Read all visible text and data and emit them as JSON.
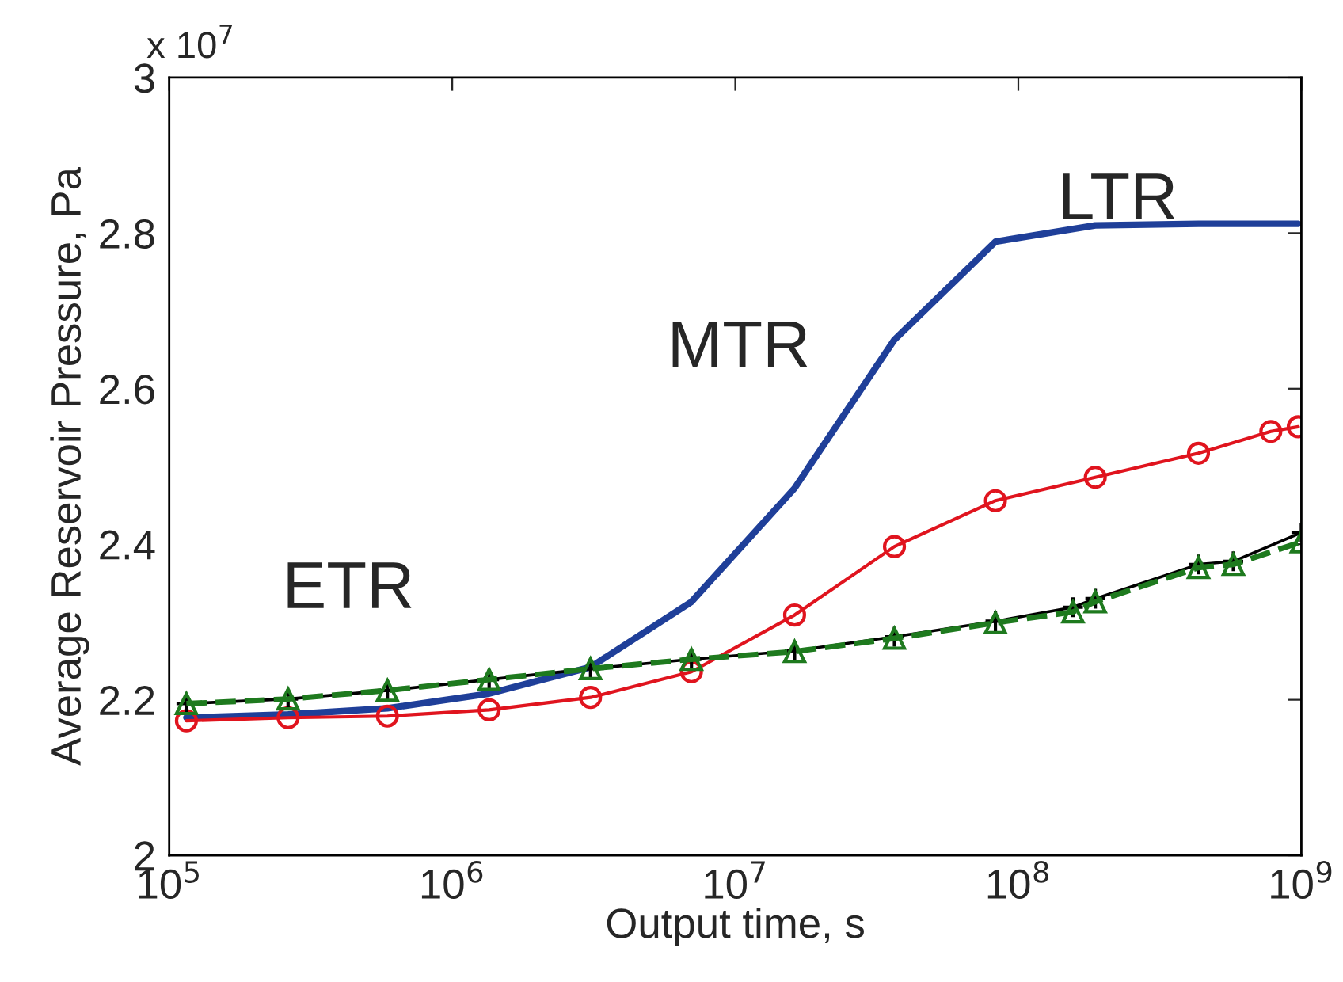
{
  "chart_data": {
    "type": "line",
    "xlabel": "Output time, s",
    "ylabel": "Average Reservoir Pressure, Pa",
    "annotations": [
      "x 10$^{7}$",
      "ETR",
      "MTR",
      "LTR"
    ],
    "log": "x",
    "xlim": [
      100000,
      1000000000
    ],
    "xticks": [
      {
        "value": 100000,
        "label": "10$^{5}$"
      },
      {
        "value": 1000000,
        "label": "10$^{6}$"
      },
      {
        "value": 10000000,
        "label": "10$^{7}$"
      },
      {
        "value": 100000000,
        "label": "10$^{8}$"
      },
      {
        "value": 1000000000,
        "label": "10$^{9}$"
      }
    ],
    "ylim": [
      2,
      3
    ],
    "yticks": [
      2,
      2.2,
      2.4,
      2.6,
      2.8,
      3
    ],
    "grid": false,
    "series": [
      {
        "color": "#1f3f99",
        "marker": "none",
        "line_style": "solid",
        "x": [
          115000,
          263000,
          590000,
          1350000,
          3080000,
          7000000,
          16200000,
          36500000,
          83000000,
          187000000,
          433000000,
          975000000
        ],
        "values": [
          2.177,
          2.181,
          2.189,
          2.208,
          2.242,
          2.326,
          2.472,
          2.663,
          2.789,
          2.81,
          2.812,
          2.812
        ]
      },
      {
        "color": "#e0141e",
        "marker": "circle",
        "line_style": "solid",
        "x": [
          115000,
          263000,
          590000,
          1350000,
          3080000,
          7000000,
          16200000,
          36500000,
          83000000,
          187000000,
          433000000,
          780000000,
          975000000
        ],
        "values": [
          2.173,
          2.177,
          2.179,
          2.187,
          2.203,
          2.236,
          2.309,
          2.397,
          2.456,
          2.486,
          2.517,
          2.545,
          2.551
        ]
      },
      {
        "color": "#000000",
        "marker": "cross",
        "line_style": "solid",
        "x": [
          115000,
          263000,
          590000,
          1350000,
          3080000,
          7000000,
          16200000,
          36500000,
          83000000,
          156000000,
          187000000,
          433000000,
          575000000,
          1000000000
        ],
        "values": [
          2.195,
          2.201,
          2.212,
          2.226,
          2.24,
          2.252,
          2.263,
          2.281,
          2.301,
          2.319,
          2.33,
          2.374,
          2.378,
          2.415
        ]
      },
      {
        "color": "#1e7a1e",
        "marker": "triangle",
        "line_style": "dashed",
        "x": [
          115000,
          263000,
          590000,
          1350000,
          3080000,
          7000000,
          16200000,
          36500000,
          83000000,
          156000000,
          187000000,
          433000000,
          575000000,
          1000000000
        ],
        "values": [
          2.195,
          2.201,
          2.212,
          2.226,
          2.24,
          2.252,
          2.262,
          2.279,
          2.299,
          2.313,
          2.326,
          2.37,
          2.374,
          2.403
        ]
      }
    ]
  }
}
